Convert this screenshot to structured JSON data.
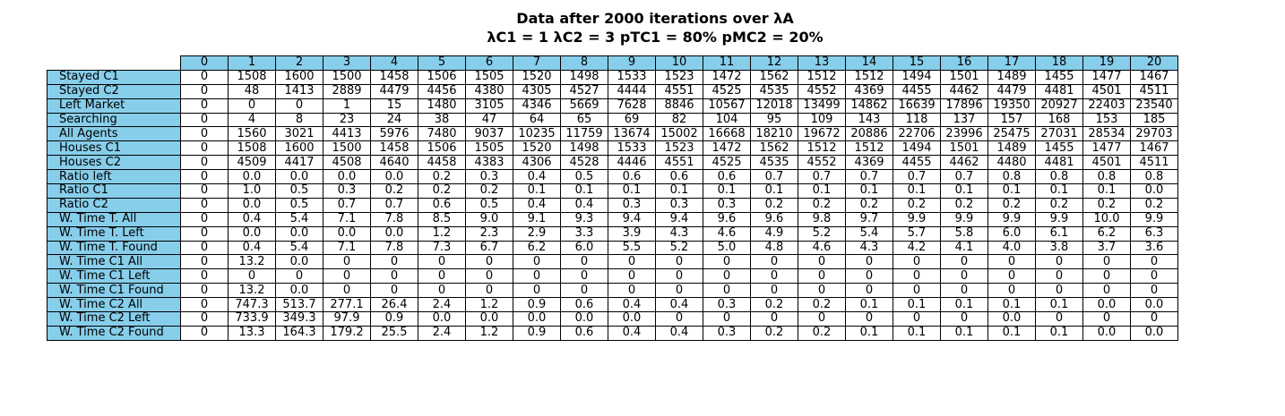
{
  "chart_data": {
    "type": "table",
    "title": "Data after 2000 iterations over λA",
    "subtitle": "λC1 = 1 λC2 = 3 pTC1 = 80% pMC2 = 20%",
    "columns": [
      "0",
      "1",
      "2",
      "3",
      "4",
      "5",
      "6",
      "7",
      "8",
      "9",
      "10",
      "11",
      "12",
      "13",
      "14",
      "15",
      "16",
      "17",
      "18",
      "19",
      "20"
    ],
    "rows": [
      {
        "label": "Stayed C1",
        "values": [
          "0",
          "1508",
          "1600",
          "1500",
          "1458",
          "1506",
          "1505",
          "1520",
          "1498",
          "1533",
          "1523",
          "1472",
          "1562",
          "1512",
          "1512",
          "1494",
          "1501",
          "1489",
          "1455",
          "1477",
          "1467"
        ]
      },
      {
        "label": "Stayed C2",
        "values": [
          "0",
          "48",
          "1413",
          "2889",
          "4479",
          "4456",
          "4380",
          "4305",
          "4527",
          "4444",
          "4551",
          "4525",
          "4535",
          "4552",
          "4369",
          "4455",
          "4462",
          "4479",
          "4481",
          "4501",
          "4511"
        ]
      },
      {
        "label": "Left Market",
        "values": [
          "0",
          "0",
          "0",
          "1",
          "15",
          "1480",
          "3105",
          "4346",
          "5669",
          "7628",
          "8846",
          "10567",
          "12018",
          "13499",
          "14862",
          "16639",
          "17896",
          "19350",
          "20927",
          "22403",
          "23540"
        ]
      },
      {
        "label": "Searching",
        "values": [
          "0",
          "4",
          "8",
          "23",
          "24",
          "38",
          "47",
          "64",
          "65",
          "69",
          "82",
          "104",
          "95",
          "109",
          "143",
          "118",
          "137",
          "157",
          "168",
          "153",
          "185"
        ]
      },
      {
        "label": "All Agents",
        "values": [
          "0",
          "1560",
          "3021",
          "4413",
          "5976",
          "7480",
          "9037",
          "10235",
          "11759",
          "13674",
          "15002",
          "16668",
          "18210",
          "19672",
          "20886",
          "22706",
          "23996",
          "25475",
          "27031",
          "28534",
          "29703"
        ]
      },
      {
        "label": "Houses C1",
        "values": [
          "0",
          "1508",
          "1600",
          "1500",
          "1458",
          "1506",
          "1505",
          "1520",
          "1498",
          "1533",
          "1523",
          "1472",
          "1562",
          "1512",
          "1512",
          "1494",
          "1501",
          "1489",
          "1455",
          "1477",
          "1467"
        ]
      },
      {
        "label": "Houses C2",
        "values": [
          "0",
          "4509",
          "4417",
          "4508",
          "4640",
          "4458",
          "4383",
          "4306",
          "4528",
          "4446",
          "4551",
          "4525",
          "4535",
          "4552",
          "4369",
          "4455",
          "4462",
          "4480",
          "4481",
          "4501",
          "4511"
        ]
      },
      {
        "label": "Ratio left",
        "values": [
          "0",
          "0.0",
          "0.0",
          "0.0",
          "0.0",
          "0.2",
          "0.3",
          "0.4",
          "0.5",
          "0.6",
          "0.6",
          "0.6",
          "0.7",
          "0.7",
          "0.7",
          "0.7",
          "0.7",
          "0.8",
          "0.8",
          "0.8",
          "0.8"
        ]
      },
      {
        "label": "Ratio C1",
        "values": [
          "0",
          "1.0",
          "0.5",
          "0.3",
          "0.2",
          "0.2",
          "0.2",
          "0.1",
          "0.1",
          "0.1",
          "0.1",
          "0.1",
          "0.1",
          "0.1",
          "0.1",
          "0.1",
          "0.1",
          "0.1",
          "0.1",
          "0.1",
          "0.0"
        ]
      },
      {
        "label": "Ratio C2",
        "values": [
          "0",
          "0.0",
          "0.5",
          "0.7",
          "0.7",
          "0.6",
          "0.5",
          "0.4",
          "0.4",
          "0.3",
          "0.3",
          "0.3",
          "0.2",
          "0.2",
          "0.2",
          "0.2",
          "0.2",
          "0.2",
          "0.2",
          "0.2",
          "0.2"
        ]
      },
      {
        "label": "W. Time T. All",
        "values": [
          "0",
          "0.4",
          "5.4",
          "7.1",
          "7.8",
          "8.5",
          "9.0",
          "9.1",
          "9.3",
          "9.4",
          "9.4",
          "9.6",
          "9.6",
          "9.8",
          "9.7",
          "9.9",
          "9.9",
          "9.9",
          "9.9",
          "10.0",
          "9.9"
        ]
      },
      {
        "label": "W. Time T. Left",
        "values": [
          "0",
          "0.0",
          "0.0",
          "0.0",
          "0.0",
          "1.2",
          "2.3",
          "2.9",
          "3.3",
          "3.9",
          "4.3",
          "4.6",
          "4.9",
          "5.2",
          "5.4",
          "5.7",
          "5.8",
          "6.0",
          "6.1",
          "6.2",
          "6.3"
        ]
      },
      {
        "label": "W. Time T. Found",
        "values": [
          "0",
          "0.4",
          "5.4",
          "7.1",
          "7.8",
          "7.3",
          "6.7",
          "6.2",
          "6.0",
          "5.5",
          "5.2",
          "5.0",
          "4.8",
          "4.6",
          "4.3",
          "4.2",
          "4.1",
          "4.0",
          "3.8",
          "3.7",
          "3.6"
        ]
      },
      {
        "label": "W. Time C1 All",
        "values": [
          "0",
          "13.2",
          "0.0",
          "0",
          "0",
          "0",
          "0",
          "0",
          "0",
          "0",
          "0",
          "0",
          "0",
          "0",
          "0",
          "0",
          "0",
          "0",
          "0",
          "0",
          "0"
        ]
      },
      {
        "label": "W. Time C1 Left",
        "values": [
          "0",
          "0",
          "0",
          "0",
          "0",
          "0",
          "0",
          "0",
          "0",
          "0",
          "0",
          "0",
          "0",
          "0",
          "0",
          "0",
          "0",
          "0",
          "0",
          "0",
          "0"
        ]
      },
      {
        "label": "W. Time C1 Found",
        "values": [
          "0",
          "13.2",
          "0.0",
          "0",
          "0",
          "0",
          "0",
          "0",
          "0",
          "0",
          "0",
          "0",
          "0",
          "0",
          "0",
          "0",
          "0",
          "0",
          "0",
          "0",
          "0"
        ]
      },
      {
        "label": "W. Time C2 All",
        "values": [
          "0",
          "747.3",
          "513.7",
          "277.1",
          "26.4",
          "2.4",
          "1.2",
          "0.9",
          "0.6",
          "0.4",
          "0.4",
          "0.3",
          "0.2",
          "0.2",
          "0.1",
          "0.1",
          "0.1",
          "0.1",
          "0.1",
          "0.0",
          "0.0"
        ]
      },
      {
        "label": "W. Time C2 Left",
        "values": [
          "0",
          "733.9",
          "349.3",
          "97.9",
          "0.9",
          "0.0",
          "0.0",
          "0.0",
          "0.0",
          "0.0",
          "0",
          "0",
          "0",
          "0",
          "0",
          "0",
          "0",
          "0.0",
          "0",
          "0",
          "0"
        ]
      },
      {
        "label": "W. Time C2 Found",
        "values": [
          "0",
          "13.3",
          "164.3",
          "179.2",
          "25.5",
          "2.4",
          "1.2",
          "0.9",
          "0.6",
          "0.4",
          "0.4",
          "0.3",
          "0.2",
          "0.2",
          "0.1",
          "0.1",
          "0.1",
          "0.1",
          "0.1",
          "0.0",
          "0.0"
        ]
      }
    ],
    "header_color": "#87ceeb",
    "cell_color": "#ffffff"
  }
}
